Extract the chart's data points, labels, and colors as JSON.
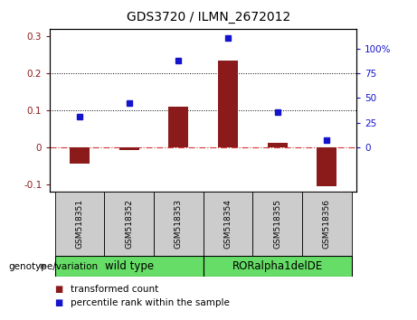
{
  "title": "GDS3720 / ILMN_2672012",
  "samples": [
    "GSM518351",
    "GSM518352",
    "GSM518353",
    "GSM518354",
    "GSM518355",
    "GSM518356"
  ],
  "transformed_count": [
    -0.043,
    -0.008,
    0.11,
    0.235,
    0.012,
    -0.105
  ],
  "percentile_rank_left": [
    0.083,
    0.12,
    0.235,
    0.295,
    0.095,
    0.02
  ],
  "ylim_left": [
    -0.12,
    0.32
  ],
  "ylim_right": [
    -11.25,
    30.0
  ],
  "yticks_left": [
    -0.1,
    0.0,
    0.1,
    0.2,
    0.3
  ],
  "yticks_right": [
    0,
    6.25,
    12.5,
    18.75,
    25.0
  ],
  "ytick_labels_left": [
    "-0.1",
    "0",
    "0.1",
    "0.2",
    "0.3"
  ],
  "ytick_labels_right": [
    "0",
    "25",
    "50",
    "75",
    "100%"
  ],
  "bar_color": "#8B1A1A",
  "dot_color": "#1414CC",
  "zero_line_color": "#CC2222",
  "hline_color": "#000000",
  "green_color": "#66DD66",
  "gray_color": "#CCCCCC",
  "genotype_label": "genotype/variation",
  "legend_items": [
    {
      "label": "transformed count",
      "color": "#8B1A1A"
    },
    {
      "label": "percentile rank within the sample",
      "color": "#1414CC"
    }
  ],
  "title_fontsize": 10,
  "tick_fontsize": 7.5,
  "sample_fontsize": 6.5,
  "group_fontsize": 8.5,
  "legend_fontsize": 7.5
}
